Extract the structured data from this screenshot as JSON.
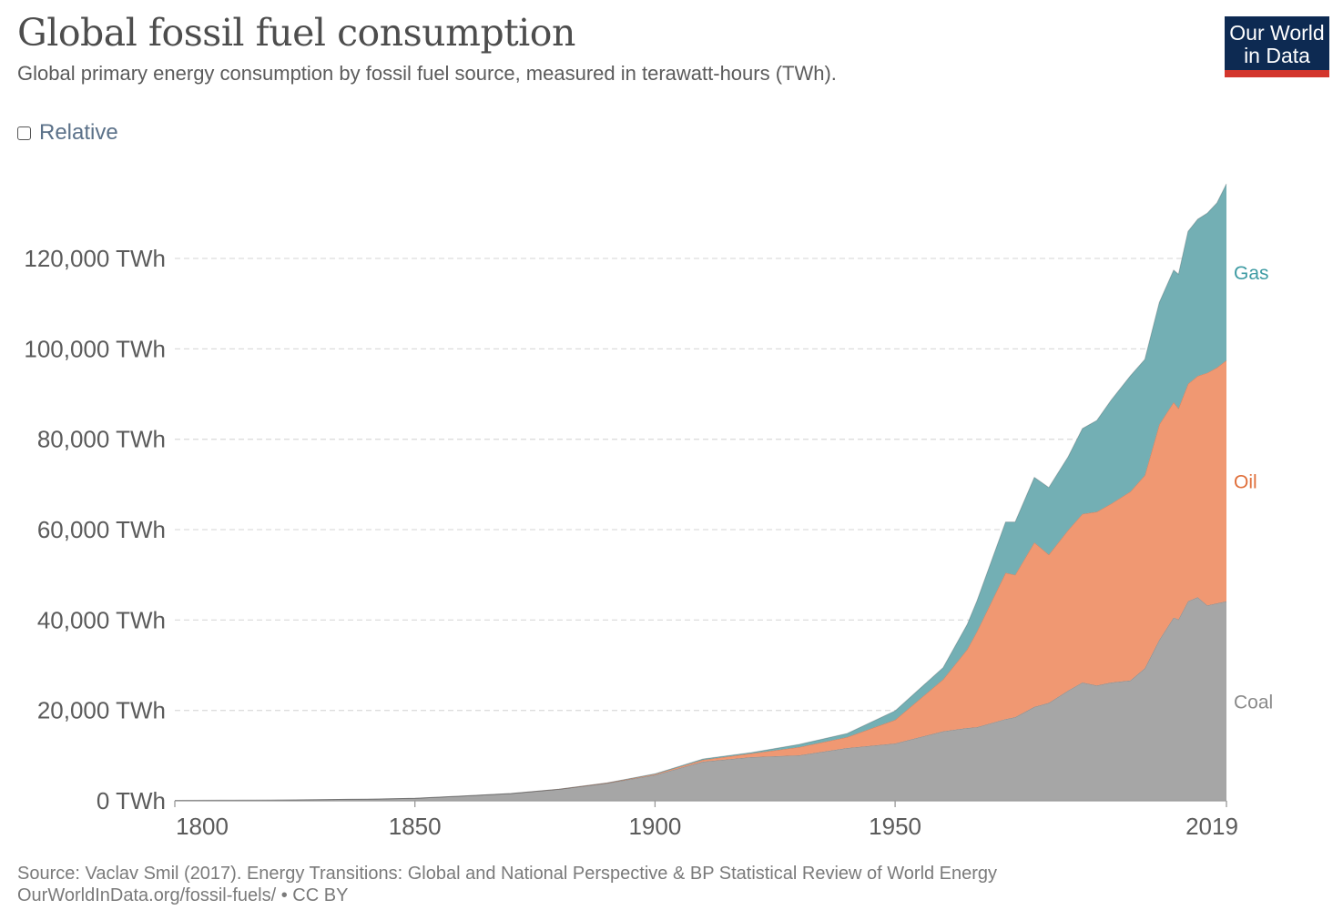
{
  "header": {
    "title": "Global fossil fuel consumption",
    "subtitle": "Global primary energy consumption by fossil fuel source, measured in terawatt-hours (TWh).",
    "logo_line1": "Our World",
    "logo_line2": "in Data"
  },
  "controls": {
    "relative_label": "Relative",
    "relative_checked": false
  },
  "footer": {
    "source": "Source: Vaclav Smil (2017). Energy Transitions: Global and National Perspective & BP Statistical Review of World Energy",
    "url_license": "OurWorldInData.org/fossil-fuels/ • CC BY"
  },
  "chart_data": {
    "type": "area",
    "stacked": true,
    "title": "Global fossil fuel consumption",
    "xlabel": "",
    "ylabel": "",
    "xlim": [
      1800,
      2019
    ],
    "ylim": [
      0,
      136520
    ],
    "grid": true,
    "legend": "right (inline labels)",
    "x_ticks": [
      "1800",
      "1850",
      "1900",
      "1950",
      "2019"
    ],
    "x_tick_values": [
      1800,
      1850,
      1900,
      1950,
      2019
    ],
    "y_ticks": [
      "0 TWh",
      "20,000 TWh",
      "40,000 TWh",
      "60,000 TWh",
      "80,000 TWh",
      "100,000 TWh",
      "120,000 TWh"
    ],
    "y_tick_values": [
      0,
      20000,
      40000,
      60000,
      80000,
      100000,
      120000
    ],
    "x": [
      1800,
      1810,
      1820,
      1830,
      1840,
      1850,
      1860,
      1870,
      1880,
      1890,
      1900,
      1910,
      1920,
      1930,
      1940,
      1950,
      1960,
      1965,
      1967,
      1973,
      1975,
      1979,
      1982,
      1986,
      1989,
      1992,
      1995,
      1999,
      2002,
      2005,
      2008,
      2009,
      2011,
      2013,
      2015,
      2017,
      2019
    ],
    "series": [
      {
        "name": "Coal",
        "color": "#a6a6a6",
        "values": [
          97,
          128,
          153,
          264,
          356,
          569,
          1061,
          1605,
          2542,
          3859,
          5728,
          8650,
          9660,
          10070,
          11680,
          12680,
          15380,
          16100,
          16280,
          18080,
          18500,
          20770,
          21670,
          24370,
          26170,
          25540,
          26170,
          26620,
          29320,
          35600,
          40560,
          40110,
          44150,
          45050,
          43250,
          43700,
          44150
        ]
      },
      {
        "name": "Oil",
        "color": "#f09872",
        "values": [
          0,
          0,
          0,
          0,
          0,
          0,
          0,
          6,
          33,
          89,
          181,
          410,
          810,
          1810,
          2410,
          5240,
          11500,
          17400,
          21130,
          32370,
          31500,
          36420,
          32820,
          35520,
          37320,
          38400,
          39570,
          41820,
          42710,
          47670,
          47660,
          46760,
          48110,
          48950,
          51440,
          52160,
          53330
        ]
      },
      {
        "name": "Gas",
        "color": "#73afb4",
        "values": [
          0,
          0,
          0,
          0,
          0,
          0,
          0,
          0,
          0,
          0,
          64,
          200,
          200,
          600,
          800,
          2000,
          2600,
          5500,
          6740,
          11240,
          11690,
          14390,
          14840,
          16190,
          18880,
          20230,
          22930,
          25620,
          25630,
          26980,
          29220,
          29670,
          33740,
          34690,
          35350,
          36430,
          39040
        ]
      }
    ]
  }
}
